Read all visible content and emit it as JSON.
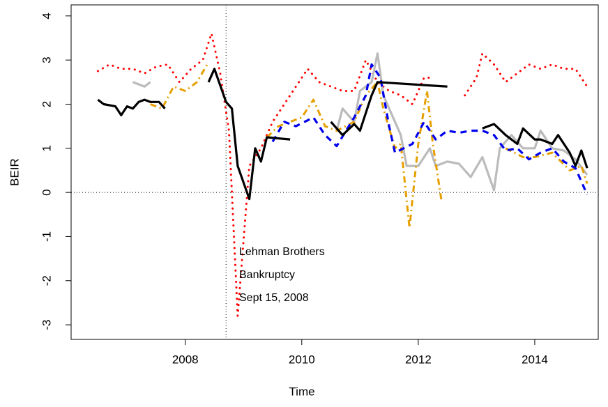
{
  "chart_data": {
    "type": "line",
    "xlabel": "Time",
    "ylabel": "BEIR",
    "xlim": [
      2006.04,
      2015.09
    ],
    "ylim": [
      -3.33,
      4.25
    ],
    "xticks": [
      2008,
      2010,
      2012,
      2014
    ],
    "yticks": [
      -3,
      -2,
      -1,
      0,
      1,
      2,
      3,
      4
    ],
    "vline": 2008.7,
    "hline": 0,
    "annotation": [
      "Lehman Brothers",
      "Bankruptcy",
      "Sept 15, 2008"
    ],
    "series": [
      {
        "color": "#ff0000",
        "style": "dotted",
        "x": [
          2006.5,
          2006.7,
          2006.9,
          2007.1,
          2007.3,
          2007.5,
          2007.7,
          2007.9,
          2008.1,
          2008.3,
          2008.45,
          2008.6,
          2008.75,
          2008.9,
          2009.1,
          2009.3,
          2009.5,
          2009.7,
          2009.9,
          2010.1,
          2010.3,
          2010.5,
          2010.7,
          2010.9,
          2011.1,
          2011.3,
          2011.5,
          2011.7,
          2011.9,
          2012.1,
          2012.25,
          2012.5,
          2012.8,
          2013.0,
          2013.1,
          2013.3,
          2013.5,
          2013.7,
          2013.9,
          2014.1,
          2014.3,
          2014.5,
          2014.7,
          2014.9
        ],
        "values": [
          2.75,
          2.9,
          2.8,
          2.8,
          2.7,
          2.85,
          2.9,
          2.5,
          2.8,
          3.0,
          3.6,
          2.7,
          1.4,
          -2.8,
          0.6,
          1.0,
          1.6,
          2.0,
          2.4,
          2.8,
          2.5,
          2.4,
          2.3,
          2.3,
          3.0,
          2.5,
          2.3,
          2.2,
          2.0,
          2.6,
          2.6,
          null,
          2.2,
          2.6,
          3.15,
          2.9,
          2.5,
          2.7,
          2.9,
          2.8,
          2.9,
          2.8,
          2.8,
          2.4
        ]
      },
      {
        "color": "#bbbbbb",
        "style": "solid",
        "x": [
          2007.1,
          2007.3,
          2007.4,
          2009.0,
          2010.6,
          2010.7,
          2010.9,
          2011.0,
          2011.2,
          2011.3,
          2011.4,
          2011.6,
          2011.7,
          2011.8,
          2012.0,
          2012.2,
          2012.3,
          2012.5,
          2012.7,
          2012.9,
          2013.1,
          2013.3,
          2013.4,
          2013.6,
          2013.8,
          2014.0,
          2014.1,
          2014.3,
          2014.5,
          2014.7,
          2014.9
        ],
        "values": [
          2.5,
          2.4,
          2.5,
          null,
          1.4,
          1.9,
          1.6,
          2.3,
          2.5,
          3.15,
          2.2,
          1.6,
          1.3,
          0.6,
          0.6,
          1.0,
          0.6,
          0.7,
          0.65,
          0.35,
          0.8,
          0.05,
          1.0,
          1.3,
          1.0,
          1.0,
          1.4,
          1.0,
          0.95,
          0.75,
          0.4
        ]
      },
      {
        "color": "#e69f00",
        "style": "dotdash",
        "x": [
          2007.4,
          2007.6,
          2007.8,
          2008.0,
          2008.2,
          2008.4,
          2009.0,
          2009.4,
          2009.6,
          2009.8,
          2010.0,
          2010.2,
          2010.4,
          2010.6,
          2010.9,
          2011.1,
          2011.3,
          2011.4,
          2011.6,
          2011.7,
          2011.85,
          2012.0,
          2012.15,
          2012.25,
          2012.4,
          2013.0,
          2013.5,
          2013.8,
          2014.0,
          2014.3,
          2014.6,
          2014.8,
          2014.9
        ],
        "values": [
          2.0,
          1.9,
          2.4,
          2.3,
          2.5,
          2.95,
          null,
          1.25,
          1.5,
          1.6,
          1.7,
          2.1,
          1.5,
          1.4,
          1.6,
          2.2,
          2.5,
          1.9,
          1.0,
          1.1,
          -0.8,
          1.1,
          2.3,
          1.1,
          -0.2,
          null,
          1.0,
          0.8,
          0.8,
          0.9,
          0.5,
          0.6,
          0.2
        ]
      },
      {
        "color": "#0000ee",
        "style": "dashed",
        "x": [
          2009.5,
          2009.7,
          2009.9,
          2010.2,
          2010.4,
          2010.6,
          2010.9,
          2011.1,
          2011.2,
          2011.35,
          2011.5,
          2011.6,
          2011.9,
          2012.1,
          2012.3,
          2012.5,
          2012.7,
          2012.9,
          2013.1,
          2013.3,
          2013.5,
          2013.7,
          2013.9,
          2014.1,
          2014.3,
          2014.5,
          2014.7,
          2014.9
        ],
        "values": [
          1.15,
          1.6,
          1.5,
          1.7,
          1.3,
          1.05,
          1.7,
          2.2,
          2.9,
          2.6,
          1.5,
          0.9,
          1.1,
          1.6,
          1.2,
          1.4,
          1.35,
          1.4,
          1.4,
          1.3,
          0.95,
          1.0,
          0.75,
          0.9,
          1.0,
          0.7,
          0.55,
          -0.05
        ]
      },
      {
        "color": "#000000",
        "style": "solid",
        "x": [
          2006.5,
          2006.6,
          2006.8,
          2006.9,
          2007.0,
          2007.1,
          2007.2,
          2007.3,
          2007.4,
          2007.55,
          2007.65,
          2008.3,
          2008.4,
          2008.5,
          2008.7,
          2008.8,
          2008.9,
          2009.1,
          2009.2,
          2009.3,
          2009.4,
          2009.8,
          2010.3,
          2010.5,
          2010.7,
          2010.9,
          2011.0,
          2011.2,
          2011.3,
          2012.5,
          2013.0,
          2013.1,
          2013.3,
          2013.5,
          2013.7,
          2013.8,
          2014.0,
          2014.1,
          2014.3,
          2014.4,
          2014.6,
          2014.7,
          2014.8,
          2014.9
        ],
        "values": [
          2.1,
          2.0,
          1.95,
          1.75,
          1.95,
          1.9,
          2.05,
          2.1,
          2.05,
          2.05,
          1.9,
          null,
          2.5,
          2.8,
          2.05,
          1.9,
          0.6,
          -0.15,
          1.0,
          0.7,
          1.25,
          1.2,
          null,
          1.6,
          1.3,
          1.55,
          1.4,
          2.2,
          2.5,
          2.4,
          null,
          1.45,
          1.55,
          1.3,
          1.1,
          1.45,
          1.2,
          1.2,
          1.1,
          1.3,
          0.9,
          0.6,
          0.95,
          0.55
        ]
      }
    ]
  }
}
